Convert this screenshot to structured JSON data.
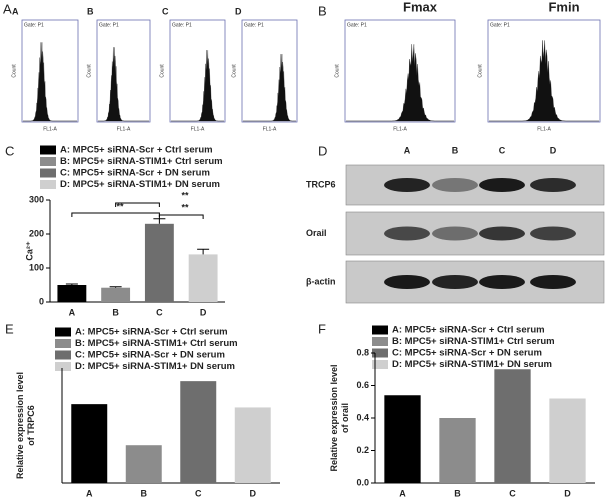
{
  "flow_panels": [
    {
      "panel_label": "A",
      "plots": [
        {
          "label": "A",
          "gate": "Gate: P1",
          "ylabel": "Count",
          "xlabel": "FL1-A"
        },
        {
          "label": "B",
          "gate": "Gate: P1",
          "ylabel": "Count",
          "xlabel": "FL1-A"
        },
        {
          "label": "C",
          "gate": "Gate: P1",
          "ylabel": "Count",
          "xlabel": "FL1-A"
        },
        {
          "label": "D",
          "gate": "Gate: P1",
          "ylabel": "Count",
          "xlabel": "FL1-A"
        }
      ]
    },
    {
      "panel_label": "B",
      "plots": [
        {
          "label": "Fmax",
          "gate": "Gate: P1",
          "ylabel": "Count",
          "xlabel": "FL1-A"
        },
        {
          "label": "Fmin",
          "gate": "Gate: P1",
          "ylabel": "Count",
          "xlabel": "FL1-A"
        }
      ]
    }
  ],
  "blot": {
    "panel_label": "D",
    "lanes": [
      "A",
      "B",
      "C",
      "D"
    ],
    "rows": [
      "TRCP6",
      "Orail",
      "β-actin"
    ]
  },
  "chart_data": [
    {
      "type": "bar",
      "panel_label": "C",
      "categories": [
        "A",
        "B",
        "C",
        "D"
      ],
      "legend": [
        "A: MPC5+ siRNA-Scr + Ctrl serum",
        "B: MPC5+ siRNA-STIM1+ Ctrl serum",
        "C: MPC5+ siRNA-Scr + DN serum",
        "D: MPC5+ siRNA-STIM1+ DN serum"
      ],
      "colors": [
        "#000000",
        "#8c8c8c",
        "#6e6e6e",
        "#cfcfcf"
      ],
      "values": [
        50,
        42,
        230,
        140
      ],
      "errors": [
        3,
        3,
        15,
        15
      ],
      "ylabel": [
        "Ca²⁺"
      ],
      "ylim": [
        0,
        300
      ],
      "yticks": [
        0,
        100,
        200,
        300
      ],
      "annotations": [
        "**",
        "**",
        "**"
      ]
    },
    {
      "type": "bar",
      "panel_label": "E",
      "categories": [
        "A",
        "B",
        "C",
        "D"
      ],
      "legend": [
        "A: MPC5+ siRNA-Scr + Ctrl serum",
        "B: MPC5+ siRNA-STIM1+ Ctrl serum",
        "C: MPC5+ siRNA-Scr + DN serum",
        "D: MPC5+ siRNA-STIM1+ DN serum"
      ],
      "colors": [
        "#000000",
        "#8c8c8c",
        "#6e6e6e",
        "#cfcfcf"
      ],
      "values": [
        0.48,
        0.23,
        0.62,
        0.46
      ],
      "ylabel": [
        "Relative expression level",
        "of TRPC6"
      ],
      "ylim": [
        0,
        0.7
      ],
      "yticks": []
    },
    {
      "type": "bar",
      "panel_label": "F",
      "categories": [
        "A",
        "B",
        "C",
        "D"
      ],
      "legend": [
        "A: MPC5+ siRNA-Scr + Ctrl serum",
        "B: MPC5+ siRNA-STIM1+ Ctrl serum",
        "C: MPC5+ siRNA-Scr + DN serum",
        "D: MPC5+ siRNA-STIM1+ DN serum"
      ],
      "colors": [
        "#000000",
        "#8c8c8c",
        "#6e6e6e",
        "#cfcfcf"
      ],
      "values": [
        0.54,
        0.4,
        0.7,
        0.52
      ],
      "ylabel": [
        "Relative expression level",
        "of orail"
      ],
      "ylim": [
        0,
        0.8
      ],
      "yticks": [
        {
          "value": 0,
          "label": "0.0"
        },
        {
          "value": 0.2,
          "label": "0.2"
        },
        {
          "value": 0.4,
          "label": "0.4"
        },
        {
          "value": 0.6,
          "label": "0.6"
        },
        {
          "value": 0.8,
          "label": "0.8"
        }
      ]
    }
  ]
}
